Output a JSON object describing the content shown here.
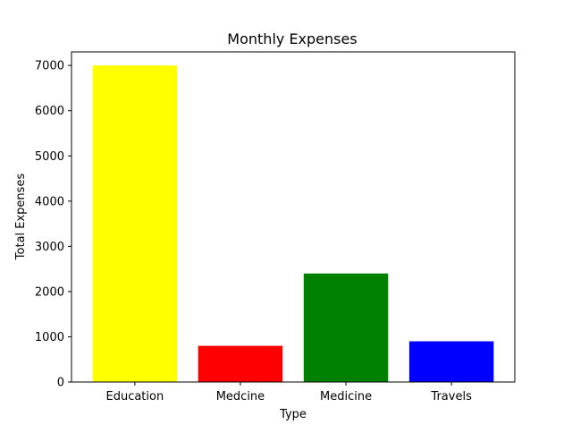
{
  "chart_data": {
    "type": "bar",
    "title": "Monthly Expenses",
    "xlabel": "Type",
    "ylabel": "Total Expenses",
    "categories": [
      "Education",
      "Medcine",
      "Medicine",
      "Travels"
    ],
    "values": [
      7000,
      800,
      2400,
      900
    ],
    "bar_colors": [
      "#ffff00",
      "#ff0000",
      "#008000",
      "#0000ff"
    ],
    "ylim": [
      0,
      7300
    ],
    "yticks": [
      0,
      1000,
      2000,
      3000,
      4000,
      5000,
      6000,
      7000
    ],
    "grid": false,
    "legend": "none"
  }
}
